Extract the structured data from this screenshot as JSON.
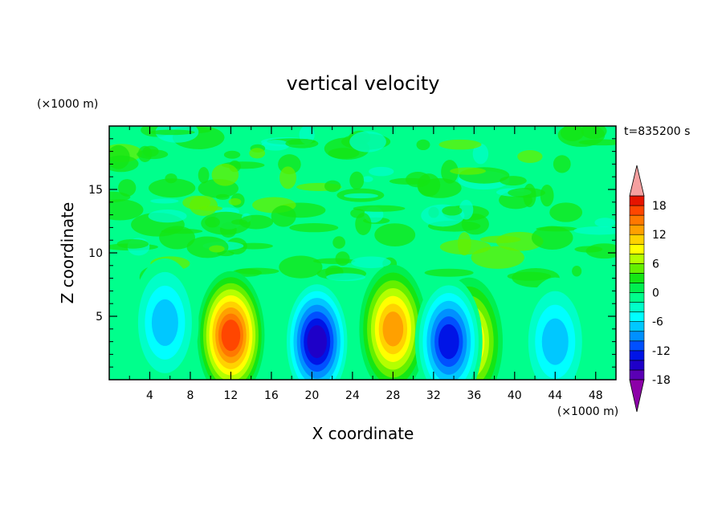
{
  "chart_data": {
    "type": "heatmap",
    "title": "vertical velocity",
    "time_label": "t=835200 s",
    "xlabel": "X coordinate",
    "ylabel": "Z coordinate",
    "x_unit": "(×1000 m)",
    "y_unit": "(×1000 m)",
    "x_ticks": [
      4,
      8,
      12,
      16,
      20,
      24,
      28,
      32,
      36,
      40,
      44,
      48
    ],
    "y_ticks": [
      5,
      10,
      15
    ],
    "xlim": [
      0,
      50
    ],
    "ylim": [
      0,
      20
    ],
    "colorbar_ticks": [
      18,
      12,
      6,
      0,
      -6,
      -12,
      -18
    ],
    "colorbar_levels": [
      -20,
      -18,
      -16,
      -14,
      -12,
      -10,
      -8,
      -6,
      -4,
      -2,
      0,
      2,
      4,
      6,
      8,
      10,
      12,
      14,
      16,
      18,
      20
    ],
    "colors": [
      "#8c00a8",
      "#5a00b4",
      "#1e00c8",
      "#0014e6",
      "#0050ff",
      "#0090ff",
      "#00c8ff",
      "#00ffff",
      "#00ffc8",
      "#00ff8c",
      "#00f050",
      "#14e614",
      "#64f000",
      "#b4ff00",
      "#ffff00",
      "#ffd200",
      "#ffa000",
      "#ff7800",
      "#ff4600",
      "#e61400",
      "#f5a0a0"
    ],
    "features": [
      {
        "x": 12,
        "z": 3.5,
        "value": 16
      },
      {
        "x": 28,
        "z": 4,
        "value": 12
      },
      {
        "x": 35.5,
        "z": 3,
        "value": 10
      },
      {
        "x": 20.5,
        "z": 3,
        "value": -14
      },
      {
        "x": 33.5,
        "z": 3,
        "value": -12
      },
      {
        "x": 5.5,
        "z": 4.5,
        "value": -6
      },
      {
        "x": 44,
        "z": 3,
        "value": -5
      }
    ]
  }
}
